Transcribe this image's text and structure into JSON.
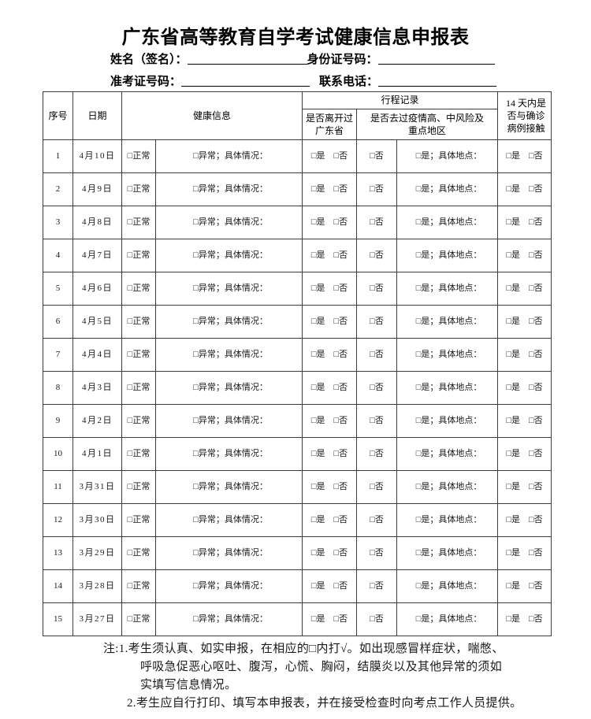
{
  "title": "广东省高等教育自学考试健康信息申报表",
  "fields": {
    "name_label": "姓名（签名）：",
    "name_value": "",
    "id_label": "身份证号码：",
    "id_value": "",
    "exam_no_label": "准考证号码：",
    "exam_no_value": "",
    "phone_label": "联系电话：",
    "phone_value": ""
  },
  "table": {
    "headers": {
      "no": "序号",
      "date": "日期",
      "health": "健康信息",
      "travel": "行程记录",
      "left_province": "是否离开过\n广东省",
      "risk_area": "是否去过疫情高、中风险及\n重点地区",
      "contact_14d": "14 天内是\n否与确诊\n病例接触"
    },
    "row_labels": {
      "health_normal": "□正常",
      "health_abnormal": "□异常；具体情况：",
      "left_province": "□是　□否",
      "risk_no": "□否",
      "risk_yes": "□是；具体地点：",
      "contact": "□是　□否"
    },
    "rows": [
      {
        "no": "1",
        "date": "4月10日"
      },
      {
        "no": "2",
        "date": "4月9日"
      },
      {
        "no": "3",
        "date": "4月8日"
      },
      {
        "no": "4",
        "date": "4月7日"
      },
      {
        "no": "5",
        "date": "4月6日"
      },
      {
        "no": "6",
        "date": "4月5日"
      },
      {
        "no": "7",
        "date": "4月4日"
      },
      {
        "no": "8",
        "date": "4月3日"
      },
      {
        "no": "9",
        "date": "4月2日"
      },
      {
        "no": "10",
        "date": "4月1日"
      },
      {
        "no": "11",
        "date": "3月31日"
      },
      {
        "no": "12",
        "date": "3月30日"
      },
      {
        "no": "13",
        "date": "3月29日"
      },
      {
        "no": "14",
        "date": "3月28日"
      },
      {
        "no": "15",
        "date": "3月27日"
      }
    ]
  },
  "notes": {
    "line1": "注:1.考生须认真、如实申报，在相应的□内打√。如出现感冒样症状，喘憋、",
    "line2": "呼吸急促恶心呕吐、腹泻，心慌、胸闷，结膜炎以及其他异常的须如",
    "line3": "实填写信息情况。",
    "line4": "2.考生应自行打印、填写本申报表，并在接受检查时向考点工作人员提供。"
  },
  "colors": {
    "text": "#111111",
    "border": "#3c3c3c",
    "background": "#ffffff"
  }
}
